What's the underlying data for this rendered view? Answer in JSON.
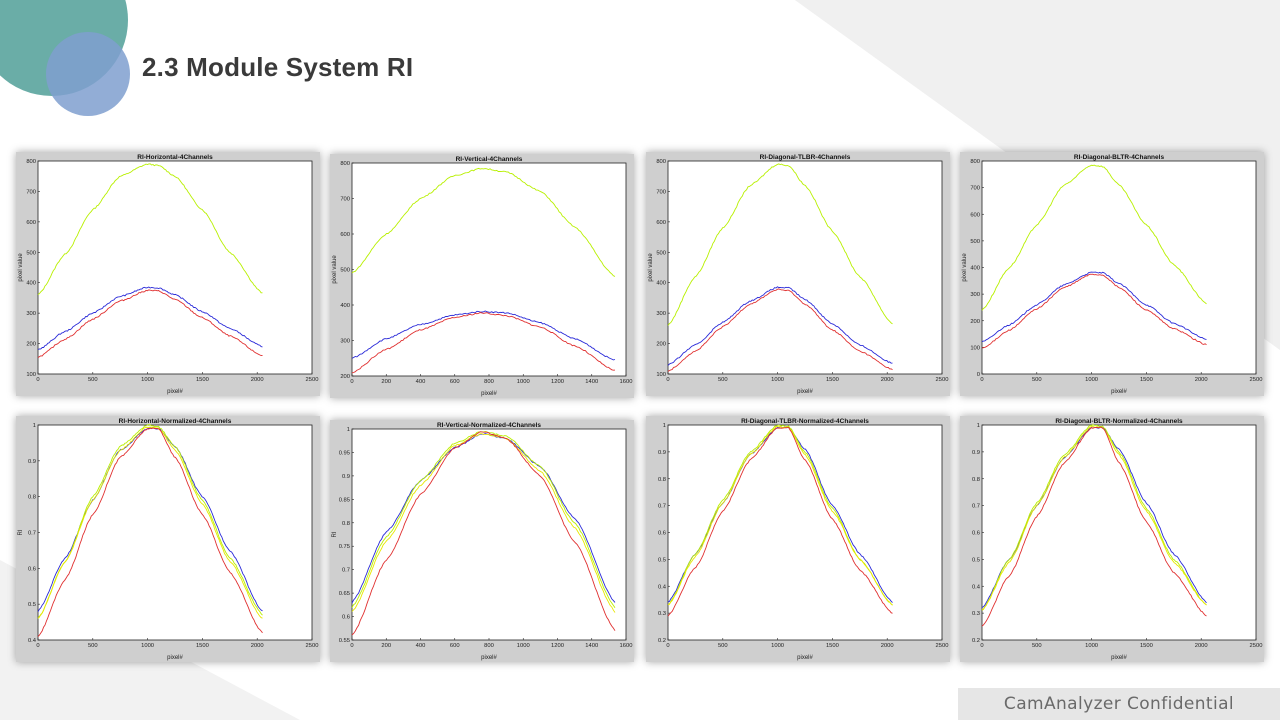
{
  "slide": {
    "title": "2.3  Module System RI",
    "footer": "CamAnalyzer  Confidential"
  },
  "colors": {
    "accent_teal": "#6aada7",
    "accent_blue": "#7f9fcf",
    "series_green": "#b8f000",
    "series_yellow": "#e8e800",
    "series_blue": "#2a2ad8",
    "series_red": "#e03030"
  },
  "chart_data": [
    {
      "type": "line",
      "title": "RI-Horizontal-4Channels",
      "xlabel": "pixel#",
      "ylabel": "pixel value",
      "xlim": [
        0,
        2500
      ],
      "ylim": [
        100,
        800
      ],
      "xticks": [
        "0",
        "500",
        "1000",
        "1500",
        "2000",
        "2500"
      ],
      "yticks": [
        "100",
        "200",
        "300",
        "400",
        "500",
        "600",
        "700",
        "800"
      ],
      "series": [
        {
          "color": "#b8f000",
          "x": [
            0,
            250,
            500,
            750,
            1000,
            1100,
            1250,
            1500,
            1750,
            2048
          ],
          "y": [
            360,
            495,
            640,
            750,
            790,
            785,
            750,
            640,
            500,
            365
          ]
        },
        {
          "color": "#2a2ad8",
          "x": [
            0,
            250,
            500,
            750,
            1000,
            1100,
            1250,
            1500,
            1750,
            2048
          ],
          "y": [
            180,
            240,
            300,
            355,
            385,
            383,
            360,
            305,
            250,
            190
          ]
        },
        {
          "color": "#e03030",
          "x": [
            0,
            250,
            500,
            750,
            1000,
            1100,
            1250,
            1500,
            1750,
            2048
          ],
          "y": [
            155,
            215,
            280,
            340,
            375,
            373,
            345,
            285,
            225,
            160
          ]
        }
      ]
    },
    {
      "type": "line",
      "title": "RI-Vertical-4Channels",
      "xlabel": "pixel#",
      "ylabel": "pixel value",
      "xlim": [
        0,
        1600
      ],
      "ylim": [
        200,
        800
      ],
      "xticks": [
        "0",
        "200",
        "400",
        "600",
        "800",
        "1000",
        "1200",
        "1400",
        "1600"
      ],
      "yticks": [
        "200",
        "300",
        "400",
        "500",
        "600",
        "700",
        "800"
      ],
      "series": [
        {
          "color": "#b8f000",
          "x": [
            0,
            200,
            400,
            600,
            760,
            900,
            1100,
            1300,
            1536
          ],
          "y": [
            490,
            600,
            700,
            765,
            785,
            775,
            720,
            620,
            480
          ]
        },
        {
          "color": "#2a2ad8",
          "x": [
            0,
            200,
            400,
            600,
            760,
            900,
            1100,
            1300,
            1536
          ],
          "y": [
            250,
            305,
            345,
            372,
            382,
            378,
            350,
            305,
            245
          ]
        },
        {
          "color": "#e03030",
          "x": [
            0,
            200,
            400,
            600,
            760,
            900,
            1100,
            1300,
            1536
          ],
          "y": [
            210,
            275,
            330,
            365,
            378,
            370,
            338,
            285,
            215
          ]
        }
      ]
    },
    {
      "type": "line",
      "title": "RI-Diagonal-TLBR-4Channels",
      "xlabel": "pixel#",
      "ylabel": "pixel value",
      "xlim": [
        0,
        2500
      ],
      "ylim": [
        100,
        800
      ],
      "xticks": [
        "0",
        "500",
        "1000",
        "1500",
        "2000",
        "2500"
      ],
      "yticks": [
        "100",
        "200",
        "300",
        "400",
        "500",
        "600",
        "700",
        "800"
      ],
      "series": [
        {
          "color": "#b8f000",
          "x": [
            0,
            250,
            500,
            750,
            1000,
            1100,
            1250,
            1500,
            1750,
            2048
          ],
          "y": [
            260,
            420,
            580,
            720,
            790,
            785,
            720,
            570,
            420,
            265
          ]
        },
        {
          "color": "#2a2ad8",
          "x": [
            0,
            250,
            500,
            750,
            1000,
            1100,
            1250,
            1500,
            1750,
            2048
          ],
          "y": [
            130,
            195,
            270,
            340,
            385,
            383,
            345,
            265,
            195,
            135
          ]
        },
        {
          "color": "#e03030",
          "x": [
            0,
            250,
            500,
            750,
            1000,
            1100,
            1250,
            1500,
            1750,
            2048
          ],
          "y": [
            110,
            175,
            255,
            330,
            378,
            374,
            330,
            245,
            175,
            115
          ]
        }
      ]
    },
    {
      "type": "line",
      "title": "RI-Diagonal-BLTR-4Channels",
      "xlabel": "pixel#",
      "ylabel": "pixel value",
      "xlim": [
        0,
        2500
      ],
      "ylim": [
        0,
        800
      ],
      "xticks": [
        "0",
        "500",
        "1000",
        "1500",
        "2000",
        "2500"
      ],
      "yticks": [
        "0",
        "100",
        "200",
        "300",
        "400",
        "500",
        "600",
        "700",
        "800"
      ],
      "series": [
        {
          "color": "#b8f000",
          "x": [
            0,
            250,
            500,
            750,
            1000,
            1100,
            1250,
            1500,
            1750,
            2048
          ],
          "y": [
            240,
            400,
            560,
            710,
            785,
            780,
            710,
            560,
            410,
            265
          ]
        },
        {
          "color": "#2a2ad8",
          "x": [
            0,
            250,
            500,
            750,
            1000,
            1100,
            1250,
            1500,
            1750,
            2048
          ],
          "y": [
            120,
            185,
            260,
            335,
            382,
            380,
            340,
            260,
            190,
            130
          ]
        },
        {
          "color": "#e03030",
          "x": [
            0,
            250,
            500,
            750,
            1000,
            1100,
            1250,
            1500,
            1750,
            2048
          ],
          "y": [
            95,
            165,
            245,
            325,
            375,
            372,
            325,
            240,
            170,
            110
          ]
        }
      ]
    },
    {
      "type": "line",
      "title": "RI-Horizontal-Normalized-4Channels",
      "xlabel": "pixel#",
      "ylabel": "RI",
      "xlim": [
        0,
        2500
      ],
      "ylim": [
        0.4,
        1
      ],
      "xticks": [
        "0",
        "500",
        "1000",
        "1500",
        "2000",
        "2500"
      ],
      "yticks": [
        "0.4",
        "0.5",
        "0.6",
        "0.7",
        "0.8",
        "0.9",
        "1"
      ],
      "series": [
        {
          "color": "#2a2ad8",
          "x": [
            0,
            250,
            500,
            750,
            1000,
            1100,
            1250,
            1500,
            1750,
            2048
          ],
          "y": [
            0.48,
            0.63,
            0.79,
            0.93,
            0.99,
            0.99,
            0.94,
            0.8,
            0.65,
            0.48
          ]
        },
        {
          "color": "#b8f000",
          "x": [
            0,
            250,
            500,
            750,
            1000,
            1100,
            1250,
            1500,
            1750,
            2048
          ],
          "y": [
            0.46,
            0.62,
            0.8,
            0.94,
            1.0,
            0.995,
            0.94,
            0.79,
            0.63,
            0.47
          ]
        },
        {
          "color": "#e8e800",
          "x": [
            0,
            250,
            500,
            750,
            1000,
            1100,
            1250,
            1500,
            1750,
            2048
          ],
          "y": [
            0.46,
            0.62,
            0.79,
            0.93,
            0.995,
            0.99,
            0.93,
            0.78,
            0.62,
            0.46
          ]
        },
        {
          "color": "#e03030",
          "x": [
            0,
            250,
            500,
            750,
            1000,
            1100,
            1250,
            1500,
            1750,
            2048
          ],
          "y": [
            0.41,
            0.57,
            0.75,
            0.91,
            0.99,
            0.99,
            0.91,
            0.75,
            0.59,
            0.42
          ]
        }
      ]
    },
    {
      "type": "line",
      "title": "RI-Vertical-Normalized-4Channels",
      "xlabel": "pixel#",
      "ylabel": "RI",
      "xlim": [
        0,
        1600
      ],
      "ylim": [
        0.55,
        1
      ],
      "xticks": [
        "0",
        "200",
        "400",
        "600",
        "800",
        "1000",
        "1200",
        "1400",
        "1600"
      ],
      "yticks": [
        "0.55",
        "0.6",
        "0.65",
        "0.7",
        "0.75",
        "0.8",
        "0.85",
        "0.9",
        "0.95",
        "1"
      ],
      "series": [
        {
          "color": "#2a2ad8",
          "x": [
            0,
            200,
            400,
            600,
            760,
            900,
            1100,
            1300,
            1536
          ],
          "y": [
            0.63,
            0.78,
            0.89,
            0.96,
            0.99,
            0.98,
            0.92,
            0.81,
            0.63
          ]
        },
        {
          "color": "#b8f000",
          "x": [
            0,
            200,
            400,
            600,
            760,
            900,
            1100,
            1300,
            1536
          ],
          "y": [
            0.62,
            0.77,
            0.89,
            0.97,
            0.995,
            0.985,
            0.92,
            0.8,
            0.62
          ]
        },
        {
          "color": "#e8e800",
          "x": [
            0,
            200,
            400,
            600,
            760,
            900,
            1100,
            1300,
            1536
          ],
          "y": [
            0.61,
            0.76,
            0.88,
            0.965,
            0.99,
            0.98,
            0.91,
            0.79,
            0.61
          ]
        },
        {
          "color": "#e03030",
          "x": [
            0,
            200,
            400,
            600,
            760,
            900,
            1100,
            1300,
            1536
          ],
          "y": [
            0.56,
            0.72,
            0.86,
            0.96,
            0.995,
            0.98,
            0.9,
            0.76,
            0.57
          ]
        }
      ]
    },
    {
      "type": "line",
      "title": "RI-Diagonal-TLBR-Normalized-4Channels",
      "xlabel": "pixel#",
      "ylabel": "",
      "xlim": [
        0,
        2500
      ],
      "ylim": [
        0.2,
        1
      ],
      "xticks": [
        "0",
        "500",
        "1000",
        "1500",
        "2000",
        "2500"
      ],
      "yticks": [
        "0.2",
        "0.3",
        "0.4",
        "0.5",
        "0.6",
        "0.7",
        "0.8",
        "0.9",
        "1"
      ],
      "series": [
        {
          "color": "#2a2ad8",
          "x": [
            0,
            250,
            500,
            750,
            1000,
            1100,
            1250,
            1500,
            1750,
            2048
          ],
          "y": [
            0.34,
            0.52,
            0.71,
            0.89,
            0.99,
            0.99,
            0.91,
            0.7,
            0.52,
            0.34
          ]
        },
        {
          "color": "#b8f000",
          "x": [
            0,
            250,
            500,
            750,
            1000,
            1100,
            1250,
            1500,
            1750,
            2048
          ],
          "y": [
            0.33,
            0.52,
            0.72,
            0.9,
            1.0,
            0.995,
            0.9,
            0.69,
            0.5,
            0.33
          ]
        },
        {
          "color": "#e8e800",
          "x": [
            0,
            250,
            500,
            750,
            1000,
            1100,
            1250,
            1500,
            1750,
            2048
          ],
          "y": [
            0.33,
            0.51,
            0.71,
            0.89,
            0.995,
            0.99,
            0.89,
            0.68,
            0.5,
            0.33
          ]
        },
        {
          "color": "#e03030",
          "x": [
            0,
            250,
            500,
            750,
            1000,
            1100,
            1250,
            1500,
            1750,
            2048
          ],
          "y": [
            0.29,
            0.47,
            0.68,
            0.87,
            0.99,
            0.99,
            0.87,
            0.65,
            0.46,
            0.3
          ]
        }
      ]
    },
    {
      "type": "line",
      "title": "RI-Diagonal-BLTR-Normalized-4Channels",
      "xlabel": "pixel#",
      "ylabel": "",
      "xlim": [
        0,
        2500
      ],
      "ylim": [
        0.2,
        1
      ],
      "xticks": [
        "0",
        "500",
        "1000",
        "1500",
        "2000",
        "2500"
      ],
      "yticks": [
        "0.2",
        "0.3",
        "0.4",
        "0.5",
        "0.6",
        "0.7",
        "0.8",
        "0.9",
        "1"
      ],
      "series": [
        {
          "color": "#2a2ad8",
          "x": [
            0,
            250,
            500,
            750,
            1000,
            1100,
            1250,
            1500,
            1750,
            2048
          ],
          "y": [
            0.32,
            0.5,
            0.7,
            0.88,
            0.99,
            0.99,
            0.91,
            0.71,
            0.52,
            0.34
          ]
        },
        {
          "color": "#b8f000",
          "x": [
            0,
            250,
            500,
            750,
            1000,
            1100,
            1250,
            1500,
            1750,
            2048
          ],
          "y": [
            0.31,
            0.5,
            0.71,
            0.89,
            1.0,
            0.995,
            0.9,
            0.69,
            0.5,
            0.33
          ]
        },
        {
          "color": "#e8e800",
          "x": [
            0,
            250,
            500,
            750,
            1000,
            1100,
            1250,
            1500,
            1750,
            2048
          ],
          "y": [
            0.31,
            0.49,
            0.7,
            0.88,
            0.995,
            0.99,
            0.89,
            0.68,
            0.49,
            0.33
          ]
        },
        {
          "color": "#e03030",
          "x": [
            0,
            250,
            500,
            750,
            1000,
            1100,
            1250,
            1500,
            1750,
            2048
          ],
          "y": [
            0.25,
            0.44,
            0.66,
            0.86,
            0.99,
            0.99,
            0.86,
            0.64,
            0.45,
            0.29
          ]
        }
      ]
    }
  ]
}
